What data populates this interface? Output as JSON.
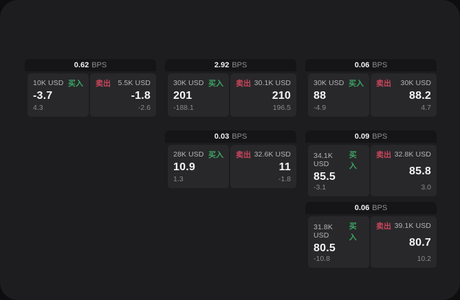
{
  "labels": {
    "bps_unit": "BPS",
    "buy": "买入",
    "sell": "卖出"
  },
  "colors": {
    "screen_bg": "#1d1d1f",
    "outside_bg": "#0e0e10",
    "card_header_bg": "#151517",
    "pane_bg": "#28282a",
    "buy_green": "#3da464",
    "sell_red": "#c9455c"
  },
  "cards": [
    {
      "bps": "0.62",
      "buy": {
        "amount": "10K USD",
        "price": "-3.7",
        "sub": "4.3"
      },
      "sell": {
        "amount": "5.5K USD",
        "price": "-1.8",
        "sub": "-2.6"
      }
    },
    {
      "bps": "2.92",
      "buy": {
        "amount": "30K USD",
        "price": "201",
        "sub": "-188.1"
      },
      "sell": {
        "amount": "30.1K USD",
        "price": "210",
        "sub": "196.5"
      }
    },
    {
      "bps": "0.06",
      "buy": {
        "amount": "30K USD",
        "price": "88",
        "sub": "-4.9"
      },
      "sell": {
        "amount": "30K USD",
        "price": "88.2",
        "sub": "4.7"
      }
    },
    {
      "bps": "0.03",
      "buy": {
        "amount": "28K USD",
        "price": "10.9",
        "sub": "1.3"
      },
      "sell": {
        "amount": "32.6K USD",
        "price": "11",
        "sub": "-1.8"
      }
    },
    {
      "bps": "0.09",
      "buy": {
        "amount": "34.1K USD",
        "price": "85.5",
        "sub": "-3.1"
      },
      "sell": {
        "amount": "32.8K USD",
        "price": "85.8",
        "sub": "3.0"
      }
    },
    {
      "bps": "0.06",
      "buy": {
        "amount": "31.8K USD",
        "price": "80.5",
        "sub": "-10.8"
      },
      "sell": {
        "amount": "39.1K USD",
        "price": "80.7",
        "sub": "10.2"
      }
    }
  ]
}
